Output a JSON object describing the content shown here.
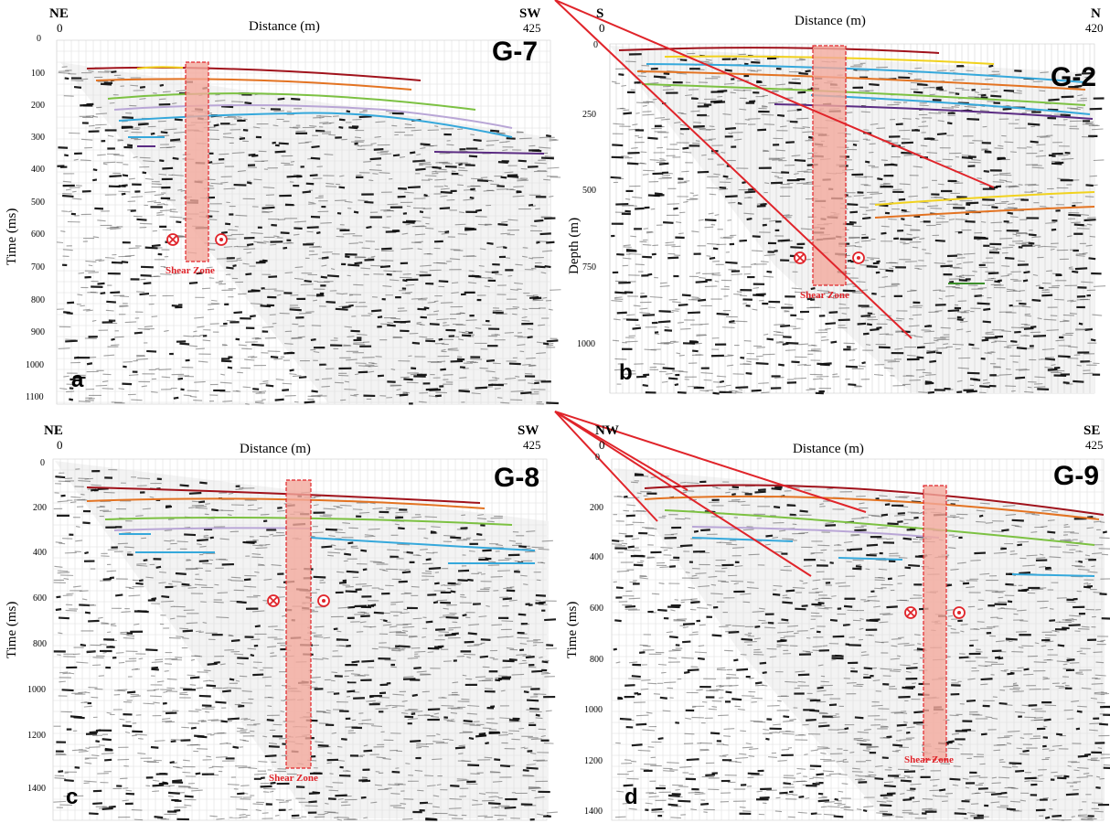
{
  "shear_zone_label": "Shear Zone",
  "colors": {
    "shear_zone_fill": "#f2a99c",
    "shear_zone_stroke": "#e0242a",
    "fault": "#e0242a",
    "horizon_red": "#a0121b",
    "horizon_orange": "#e37322",
    "horizon_yellow": "#f1d21e",
    "horizon_green": "#7cc142",
    "horizon_lavender": "#b9a6d6",
    "horizon_blue": "#35a8db",
    "horizon_purple": "#5b2c83",
    "horizon_darkgreen": "#3c8f2c"
  },
  "panels": [
    {
      "id": "a",
      "code": "G-7",
      "letter": "a",
      "left_dir": "NE",
      "right_dir": "SW",
      "x_start": "0",
      "x_end": "425",
      "x_label": "Distance (m)",
      "y_label": "Time (ms)",
      "y_ticks": [
        "0",
        "100",
        "200",
        "300",
        "400",
        "500",
        "600",
        "700",
        "800",
        "900",
        "1000",
        "1100"
      ]
    },
    {
      "id": "b",
      "code": "G-2",
      "letter": "b",
      "left_dir": "S",
      "right_dir": "N",
      "x_start": "0",
      "x_end": "420",
      "x_label": "Distance (m)",
      "y_label": "Depth (m)",
      "y_ticks": [
        "0",
        "250",
        "500",
        "750",
        "1000"
      ]
    },
    {
      "id": "c",
      "code": "G-8",
      "letter": "c",
      "left_dir": "NE",
      "right_dir": "SW",
      "x_start": "0",
      "x_end": "425",
      "x_label": "Distance (m)",
      "y_label": "Time (ms)",
      "y_ticks": [
        "0",
        "200",
        "400",
        "600",
        "800",
        "1000",
        "1200",
        "1400"
      ]
    },
    {
      "id": "d",
      "code": "G-9",
      "letter": "d",
      "left_dir": "NW",
      "right_dir": "SE",
      "x_start": "0",
      "x_end": "425",
      "x_label": "Distance (m)",
      "y_label": "Time (ms)",
      "y_ticks": [
        "0",
        "200",
        "400",
        "600",
        "800",
        "1000",
        "1200",
        "1400"
      ]
    }
  ]
}
